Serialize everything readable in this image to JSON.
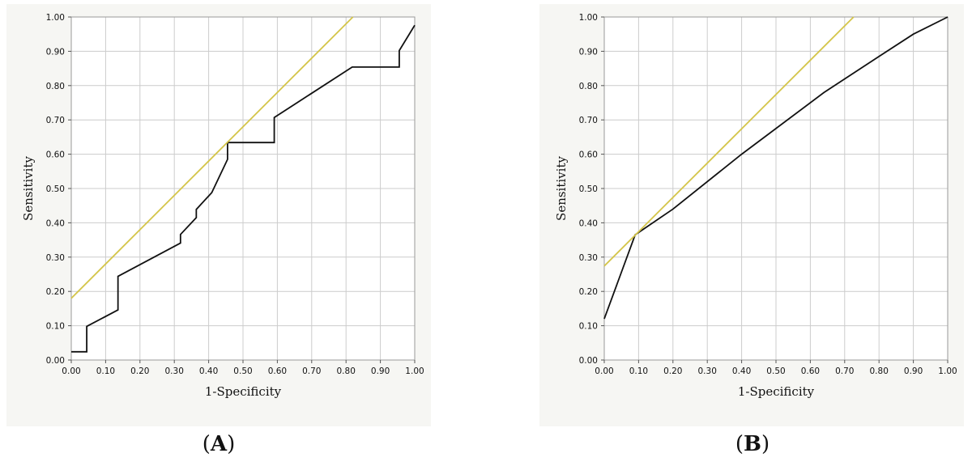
{
  "panels": [
    {
      "label_open": "(",
      "label_letter": "A",
      "label_close": ")"
    },
    {
      "label_open": "(",
      "label_letter": "B",
      "label_close": ")"
    }
  ],
  "colors": {
    "roc_line": "#111111",
    "reference_line": "#d4c54a",
    "grid": "#cccccc",
    "plot_bg": "#ffffff"
  },
  "chart_data": [
    {
      "type": "line",
      "xlabel": "1-Specificity",
      "ylabel": "Sensitivity",
      "xlim": [
        0,
        1
      ],
      "ylim": [
        0,
        1
      ],
      "grid": true,
      "x_ticks": [
        "0.00",
        "0.10",
        "0.20",
        "0.30",
        "0.40",
        "0.50",
        "0.60",
        "0.70",
        "0.80",
        "0.90",
        "1.00"
      ],
      "y_ticks": [
        "0.00",
        "0.10",
        "0.20",
        "0.30",
        "0.40",
        "0.50",
        "0.60",
        "0.70",
        "0.80",
        "0.90",
        "1.00"
      ],
      "series": [
        {
          "role": "roc",
          "x": [
            0.0,
            0.045,
            0.045,
            0.136,
            0.136,
            0.318,
            0.318,
            0.364,
            0.364,
            0.409,
            0.455,
            0.455,
            0.591,
            0.591,
            0.818,
            0.955,
            0.955,
            1.0
          ],
          "y": [
            0.024,
            0.024,
            0.098,
            0.146,
            0.244,
            0.341,
            0.366,
            0.415,
            0.439,
            0.488,
            0.585,
            0.634,
            0.634,
            0.707,
            0.854,
            0.854,
            0.902,
            0.976
          ]
        },
        {
          "role": "reference",
          "x": [
            0.0,
            0.82
          ],
          "y": [
            0.18,
            1.0
          ]
        }
      ]
    },
    {
      "type": "line",
      "xlabel": "1-Specificity",
      "ylabel": "Sensitivity",
      "xlim": [
        0,
        1
      ],
      "ylim": [
        0,
        1
      ],
      "grid": true,
      "x_ticks": [
        "0.00",
        "0.10",
        "0.20",
        "0.30",
        "0.40",
        "0.50",
        "0.60",
        "0.70",
        "0.80",
        "0.90",
        "1.00"
      ],
      "y_ticks": [
        "0.00",
        "0.10",
        "0.20",
        "0.30",
        "0.40",
        "0.50",
        "0.60",
        "0.70",
        "0.80",
        "0.90",
        "1.00"
      ],
      "series": [
        {
          "role": "roc",
          "x": [
            0.0,
            0.09,
            0.2,
            0.4,
            0.64,
            0.8,
            0.9,
            1.0
          ],
          "y": [
            0.12,
            0.365,
            0.44,
            0.6,
            0.78,
            0.885,
            0.95,
            1.0
          ]
        },
        {
          "role": "reference",
          "x": [
            0.0,
            0.726
          ],
          "y": [
            0.274,
            1.0
          ]
        }
      ]
    }
  ]
}
